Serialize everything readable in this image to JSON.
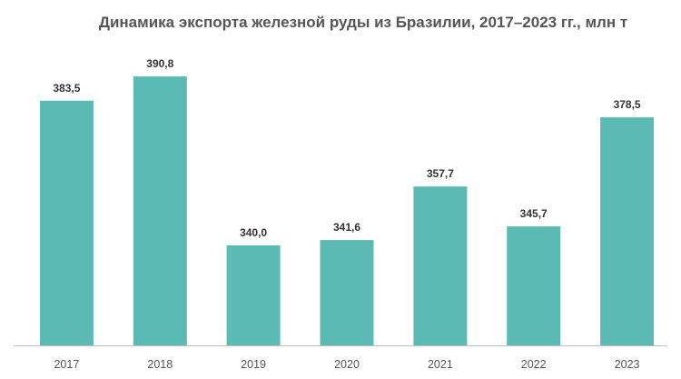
{
  "chart_data": {
    "type": "bar",
    "title": "Динамика экспорта железной руды из Бразилии, 2017–2023  гг., млн т",
    "categories": [
      "2017",
      "2018",
      "2019",
      "2020",
      "2021",
      "2022",
      "2023"
    ],
    "values": [
      383.5,
      390.8,
      340.0,
      341.6,
      357.7,
      345.7,
      378.5
    ],
    "value_labels": [
      "383,5",
      "390,8",
      "340,0",
      "341,6",
      "357,7",
      "345,7",
      "378,5"
    ],
    "xlabel": "",
    "ylabel": "",
    "ylim": [
      300,
      400
    ],
    "grid": false,
    "legend": "none",
    "colors": {
      "bar": "#5bbab3",
      "axis": "#bfbfbf"
    }
  }
}
